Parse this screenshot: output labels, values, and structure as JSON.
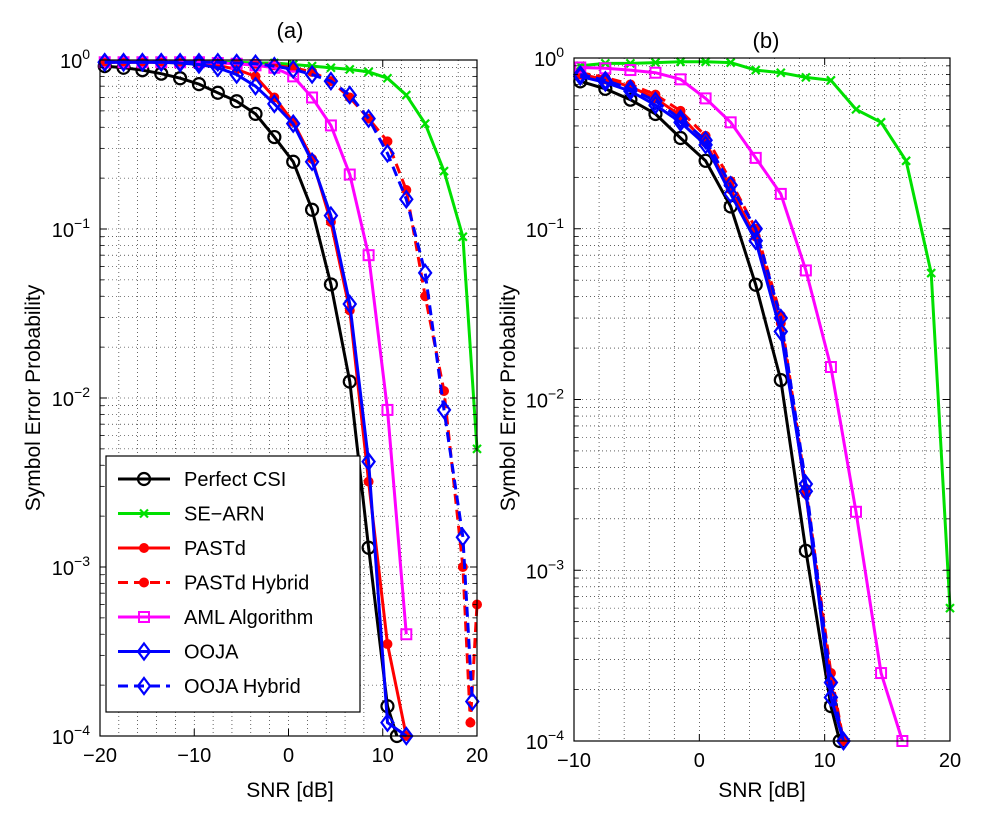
{
  "chart_data": [
    {
      "type": "line",
      "title": "(a)",
      "xlabel": "SNR [dB]",
      "ylabel": "Symbol Error Probability",
      "xlim": [
        -20,
        20
      ],
      "ylim": [
        0.0001,
        1
      ],
      "yscale": "log",
      "xticks": [
        "−20",
        "−10",
        "0",
        "10",
        "20"
      ],
      "grid": true,
      "legend": "bottom-left",
      "series": [
        {
          "name": "Perfect CSI",
          "color": "#000000",
          "dash": "solid",
          "marker": "circle-open",
          "x": [
            -19.5,
            -17.5,
            -15.5,
            -13.5,
            -11.5,
            -9.5,
            -7.5,
            -5.5,
            -3.5,
            -1.5,
            0.5,
            2.5,
            4.5,
            6.5,
            8.5,
            10.5,
            11.5
          ],
          "y": [
            0.92,
            0.9,
            0.87,
            0.83,
            0.78,
            0.72,
            0.64,
            0.57,
            0.48,
            0.35,
            0.25,
            0.13,
            0.047,
            0.0125,
            0.0013,
            0.00015,
            0.0001
          ]
        },
        {
          "name": "SE−ARN",
          "color": "#00e000",
          "dash": "solid",
          "marker": "x",
          "x": [
            -19.5,
            -17.5,
            -15.5,
            -13.5,
            -11.5,
            -9.5,
            -7.5,
            -5.5,
            -3.5,
            -1.5,
            0.5,
            2.5,
            4.5,
            6.5,
            8.5,
            10.5,
            12.5,
            14.5,
            16.5,
            18.5,
            20
          ],
          "y": [
            0.97,
            0.97,
            0.97,
            0.97,
            0.97,
            0.97,
            0.97,
            0.97,
            0.96,
            0.96,
            0.94,
            0.92,
            0.9,
            0.88,
            0.85,
            0.78,
            0.62,
            0.42,
            0.22,
            0.09,
            0.005
          ]
        },
        {
          "name": "PASTd",
          "color": "#ff0000",
          "dash": "solid",
          "marker": "dot",
          "x": [
            -19.5,
            -17.5,
            -15.5,
            -13.5,
            -11.5,
            -9.5,
            -7.5,
            -5.5,
            -3.5,
            -1.5,
            0.5,
            2.5,
            4.5,
            6.5,
            8.5,
            10.5,
            12.5
          ],
          "y": [
            0.97,
            0.97,
            0.97,
            0.97,
            0.96,
            0.95,
            0.93,
            0.88,
            0.8,
            0.6,
            0.43,
            0.26,
            0.11,
            0.033,
            0.0032,
            0.00035,
            0.0001
          ]
        },
        {
          "name": "PASTd Hybrid",
          "color": "#ff0000",
          "dash": "dashed",
          "marker": "dot",
          "x": [
            -19.5,
            -17.5,
            -15.5,
            -13.5,
            -11.5,
            -9.5,
            -7.5,
            -5.5,
            -3.5,
            -1.5,
            0.5,
            2.5,
            4.5,
            6.5,
            8.5,
            10.5,
            12.5,
            14.5,
            16.5,
            18.5,
            19.3,
            20
          ],
          "y": [
            0.97,
            0.97,
            0.97,
            0.97,
            0.97,
            0.97,
            0.97,
            0.96,
            0.95,
            0.93,
            0.9,
            0.85,
            0.75,
            0.6,
            0.45,
            0.33,
            0.17,
            0.04,
            0.011,
            0.001,
            0.00012,
            0.0006
          ]
        },
        {
          "name": "AML Algorithm",
          "color": "#ff00ff",
          "dash": "solid",
          "marker": "square-open",
          "x": [
            -19.5,
            -17.5,
            -15.5,
            -13.5,
            -11.5,
            -9.5,
            -7.5,
            -5.5,
            -3.5,
            -1.5,
            0.5,
            2.5,
            4.5,
            6.5,
            8.5,
            10.5,
            12.5
          ],
          "y": [
            0.97,
            0.97,
            0.97,
            0.97,
            0.97,
            0.97,
            0.96,
            0.95,
            0.93,
            0.9,
            0.8,
            0.6,
            0.41,
            0.21,
            0.07,
            0.0085,
            0.0004
          ]
        },
        {
          "name": "OOJA",
          "color": "#0000ff",
          "dash": "solid",
          "marker": "diamond-open",
          "x": [
            -19.5,
            -17.5,
            -15.5,
            -13.5,
            -11.5,
            -9.5,
            -7.5,
            -5.5,
            -3.5,
            -1.5,
            0.5,
            2.5,
            4.5,
            6.5,
            8.5,
            10.5,
            12.5
          ],
          "y": [
            0.97,
            0.97,
            0.97,
            0.97,
            0.96,
            0.94,
            0.9,
            0.82,
            0.7,
            0.55,
            0.42,
            0.25,
            0.12,
            0.036,
            0.0042,
            0.00012,
            0.0001
          ]
        },
        {
          "name": "OOJA Hybrid",
          "color": "#0000ff",
          "dash": "dashed",
          "marker": "diamond-open",
          "x": [
            -19.5,
            -17.5,
            -15.5,
            -13.5,
            -11.5,
            -9.5,
            -7.5,
            -5.5,
            -3.5,
            -1.5,
            0.5,
            2.5,
            4.5,
            6.5,
            8.5,
            10.5,
            12.5,
            14.5,
            16.5,
            18.5,
            19.5
          ],
          "y": [
            0.97,
            0.97,
            0.97,
            0.97,
            0.97,
            0.97,
            0.97,
            0.96,
            0.95,
            0.92,
            0.88,
            0.82,
            0.75,
            0.62,
            0.45,
            0.28,
            0.15,
            0.055,
            0.0085,
            0.0015,
            0.00016
          ]
        }
      ]
    },
    {
      "type": "line",
      "title": "(b)",
      "xlabel": "SNR [dB]",
      "ylabel": "Symbol Error Probability",
      "xlim": [
        -10,
        20
      ],
      "ylim": [
        0.0001,
        1
      ],
      "yscale": "log",
      "xticks": [
        "−10",
        "0",
        "10",
        "20"
      ],
      "grid": true,
      "legend": "none",
      "series": [
        {
          "name": "Perfect CSI",
          "color": "#000000",
          "dash": "solid",
          "marker": "circle-open",
          "x": [
            -9.5,
            -7.5,
            -5.5,
            -3.5,
            -1.5,
            0.5,
            2.5,
            4.5,
            6.5,
            8.5,
            10.5,
            11.2
          ],
          "y": [
            0.73,
            0.66,
            0.57,
            0.47,
            0.34,
            0.25,
            0.135,
            0.047,
            0.013,
            0.0013,
            0.00016,
            0.0001
          ]
        },
        {
          "name": "SE−ARN",
          "color": "#00e000",
          "dash": "solid",
          "marker": "x",
          "x": [
            -9.5,
            -7.5,
            -5.5,
            -3.5,
            -1.5,
            0.5,
            2.5,
            4.5,
            6.5,
            8.5,
            10.5,
            12.5,
            14.5,
            16.5,
            18.5,
            20
          ],
          "y": [
            0.9,
            0.93,
            0.93,
            0.94,
            0.95,
            0.95,
            0.94,
            0.85,
            0.82,
            0.77,
            0.74,
            0.5,
            0.42,
            0.25,
            0.055,
            0.0006
          ]
        },
        {
          "name": "PASTd",
          "color": "#ff0000",
          "dash": "solid",
          "marker": "dot",
          "x": [
            -9.5,
            -7.5,
            -5.5,
            -3.5,
            -1.5,
            0.5,
            2.5,
            4.5,
            6.5,
            8.5,
            10.5,
            11.5
          ],
          "y": [
            0.8,
            0.75,
            0.68,
            0.58,
            0.46,
            0.32,
            0.17,
            0.09,
            0.028,
            0.0028,
            0.00022,
            0.0001
          ]
        },
        {
          "name": "PASTd Hybrid",
          "color": "#ff0000",
          "dash": "dashed",
          "marker": "dot",
          "x": [
            -9.5,
            -7.5,
            -5.5,
            -3.5,
            -1.5,
            0.5,
            2.5,
            4.5,
            6.5,
            8.5,
            10.5,
            11.5
          ],
          "y": [
            0.82,
            0.77,
            0.7,
            0.61,
            0.49,
            0.35,
            0.19,
            0.1,
            0.031,
            0.003,
            0.00025,
            0.0001
          ]
        },
        {
          "name": "AML Algorithm",
          "color": "#ff00ff",
          "dash": "solid",
          "marker": "square-open",
          "x": [
            -9.5,
            -7.5,
            -5.5,
            -3.5,
            -1.5,
            0.5,
            2.5,
            4.5,
            6.5,
            8.5,
            10.5,
            12.5,
            14.5,
            16.2
          ],
          "y": [
            0.88,
            0.87,
            0.85,
            0.82,
            0.75,
            0.58,
            0.42,
            0.26,
            0.16,
            0.057,
            0.0155,
            0.0022,
            0.00025,
            0.0001
          ]
        },
        {
          "name": "OOJA",
          "color": "#0000ff",
          "dash": "solid",
          "marker": "diamond-open",
          "x": [
            -9.5,
            -7.5,
            -5.5,
            -3.5,
            -1.5,
            0.5,
            2.5,
            4.5,
            6.5,
            8.5,
            10.5,
            11.5
          ],
          "y": [
            0.78,
            0.72,
            0.64,
            0.53,
            0.42,
            0.31,
            0.16,
            0.085,
            0.025,
            0.0029,
            0.00018,
            0.0001
          ]
        },
        {
          "name": "OOJA Hybrid",
          "color": "#0000ff",
          "dash": "dashed",
          "marker": "diamond-open",
          "x": [
            -9.5,
            -7.5,
            -5.5,
            -3.5,
            -1.5,
            0.5,
            2.5,
            4.5,
            6.5,
            8.5,
            10.5,
            11.5
          ],
          "y": [
            0.8,
            0.74,
            0.66,
            0.56,
            0.44,
            0.33,
            0.18,
            0.1,
            0.03,
            0.0032,
            0.00022,
            0.0001
          ]
        }
      ]
    }
  ]
}
